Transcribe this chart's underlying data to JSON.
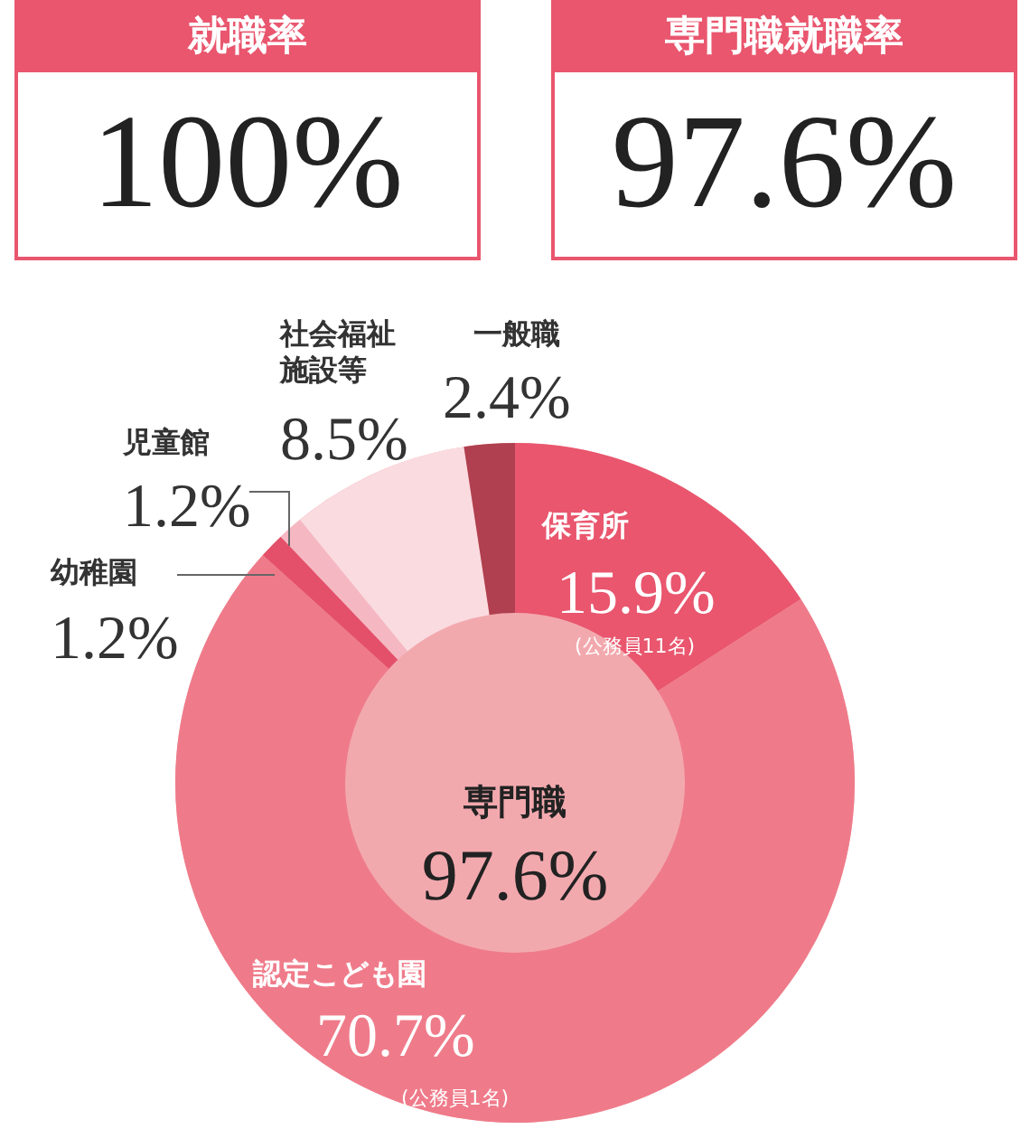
{
  "chart_data": {
    "type": "donut",
    "categories": [
      "保育所",
      "認定こども園",
      "幼稚園",
      "児童館",
      "社会福祉施設等",
      "一般職"
    ],
    "values": [
      15.9,
      70.7,
      1.2,
      1.2,
      8.5,
      2.4
    ],
    "colors": [
      "#e9566e",
      "#ef7b8a",
      "#e4506a",
      "#f5b8c3",
      "#fadbe0",
      "#b0404f"
    ],
    "value_labels": [
      "15.9%",
      "70.7%",
      "1.2%",
      "1.2%",
      "8.5%",
      "2.4%"
    ],
    "legend": false,
    "annotations": [
      "就職率",
      "100%",
      "専門職就職率",
      "97.6%",
      "専門職",
      "97.6%",
      {
        "text": "(公務員11名)",
        "x": "保育所"
      },
      {
        "text": "(公務員1名)",
        "x": "認定こども園"
      }
    ]
  }
}
